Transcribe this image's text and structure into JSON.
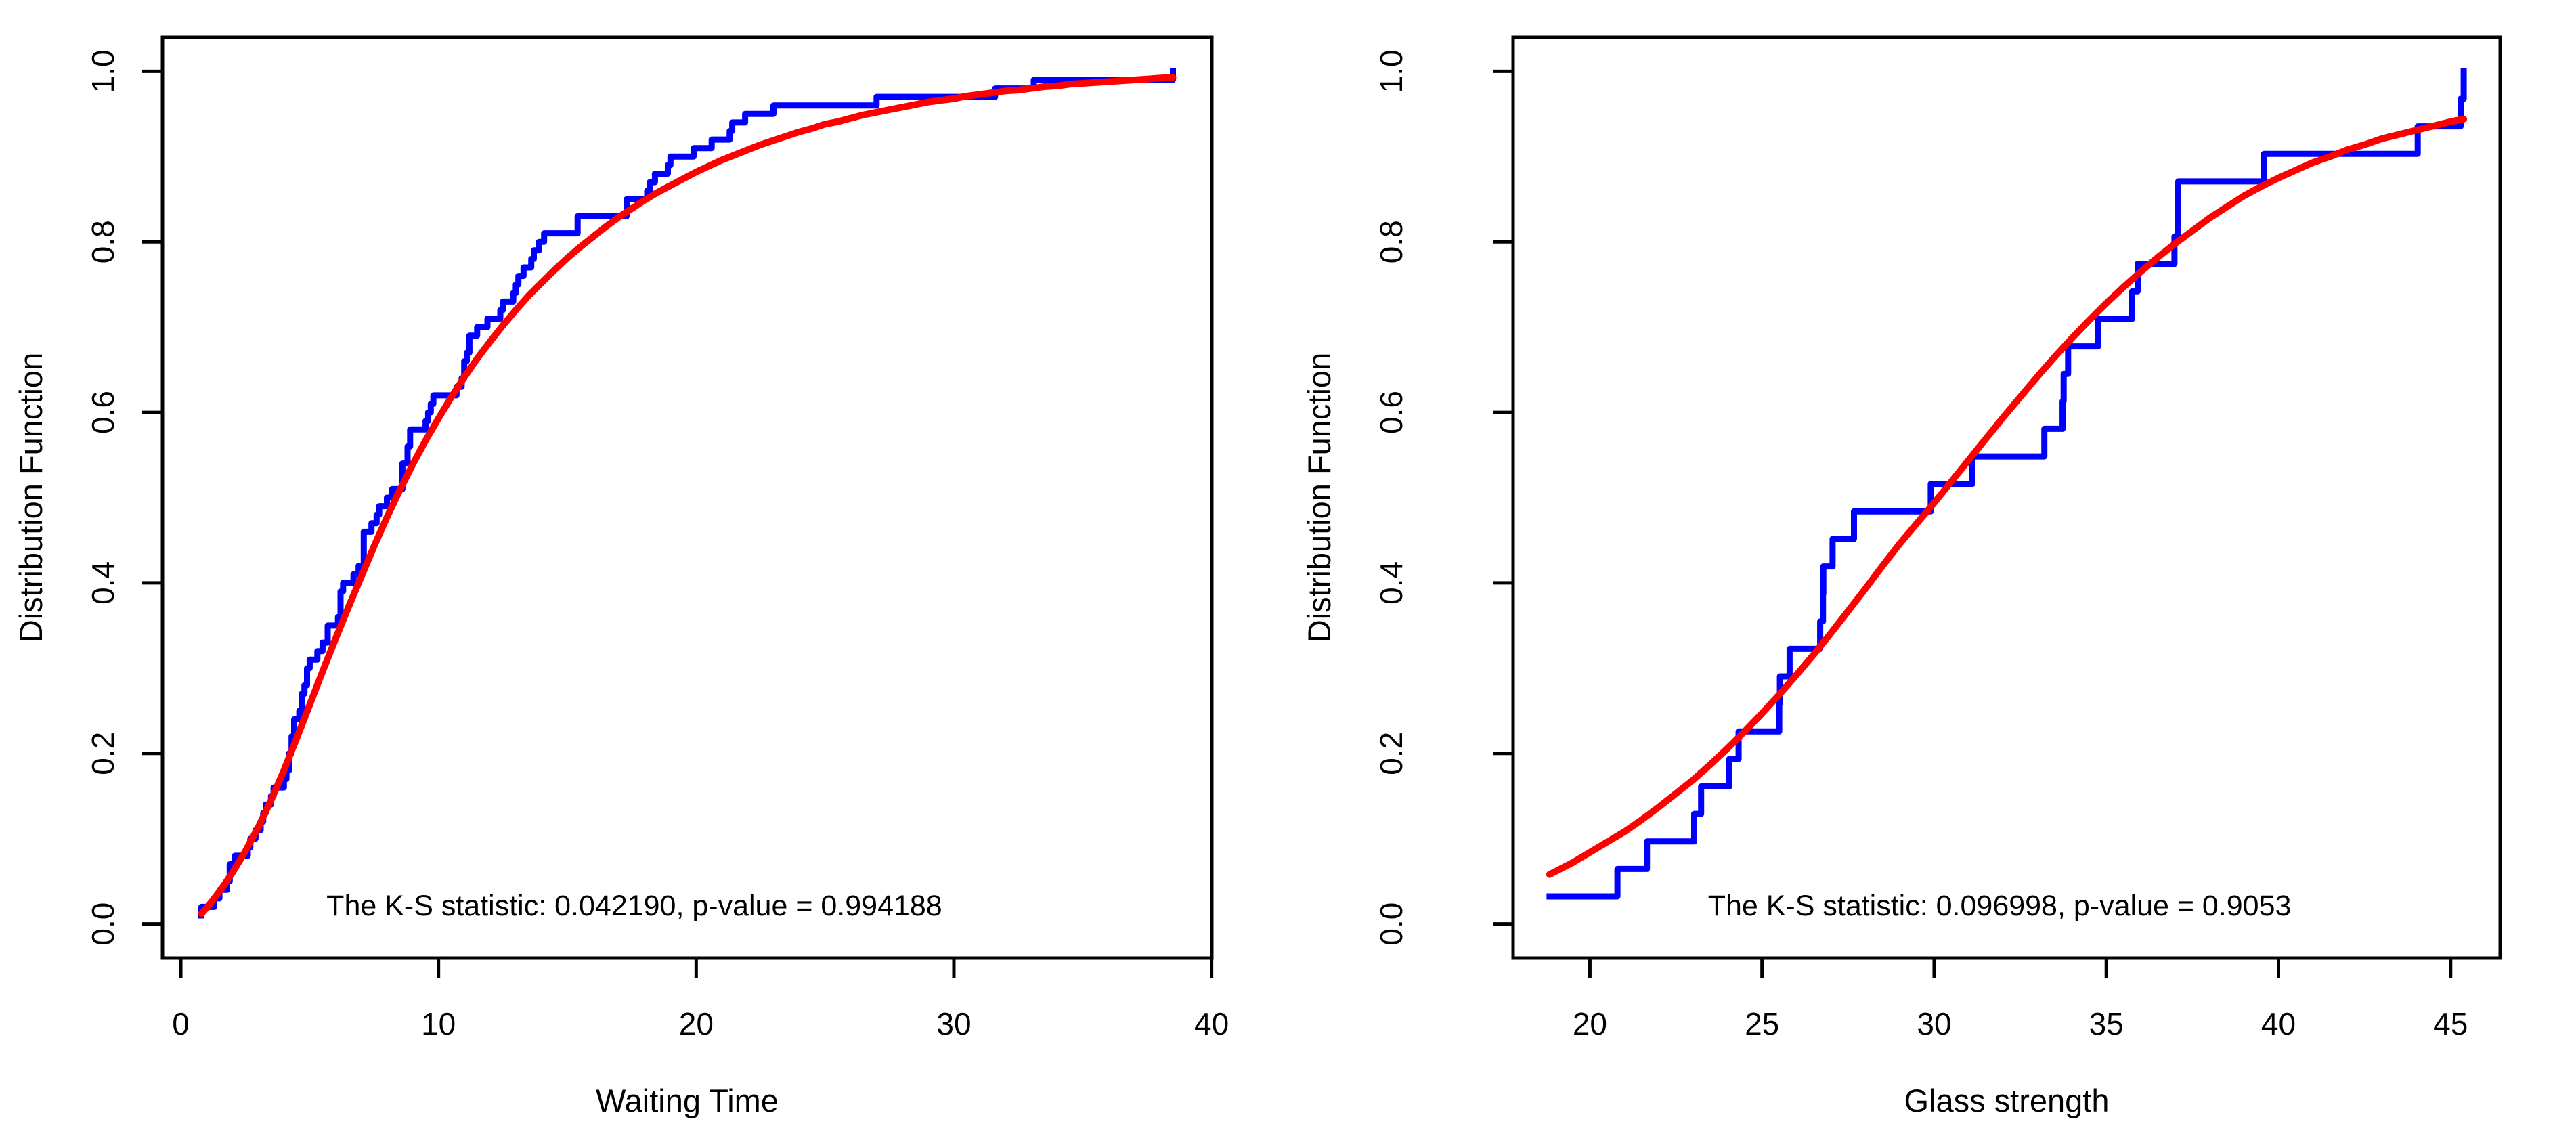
{
  "page": {
    "background": "#ffffff",
    "axis_color": "#000000"
  },
  "chart_data": [
    {
      "type": "line",
      "panel": "left",
      "title": "",
      "xlabel": "Waiting Time",
      "ylabel": "Distribution Function",
      "annotation": "The K-S statistic: 0.042190, p-value = 0.994188",
      "ks_statistic": "0.042190",
      "p_value": "0.994188",
      "annotation_xy": [
        17.6,
        0.022
      ],
      "x_ticks": [
        0,
        10,
        20,
        30,
        40
      ],
      "y_ticks": [
        "0.0",
        "0.2",
        "0.4",
        "0.6",
        "0.8",
        "1.0"
      ],
      "xlim": [
        -0.71,
        40.01
      ],
      "ylim": [
        -0.04,
        1.04
      ],
      "grid": false,
      "legend": "none",
      "series": [
        {
          "name": "empirical-cdf",
          "style": "step",
          "color": "#0000ff",
          "x": [
            0.8,
            0.8,
            1.3,
            1.5,
            1.8,
            1.9,
            1.9,
            2.1,
            2.6,
            2.7,
            2.9,
            3.1,
            3.2,
            3.3,
            3.5,
            3.6,
            4.0,
            4.1,
            4.2,
            4.2,
            4.3,
            4.3,
            4.4,
            4.4,
            4.6,
            4.7,
            4.7,
            4.8,
            4.9,
            4.9,
            5.0,
            5.3,
            5.5,
            5.7,
            5.7,
            6.1,
            6.2,
            6.2,
            6.2,
            6.3,
            6.7,
            6.9,
            7.1,
            7.1,
            7.1,
            7.1,
            7.4,
            7.6,
            7.7,
            8.0,
            8.2,
            8.6,
            8.6,
            8.6,
            8.8,
            8.8,
            8.9,
            8.9,
            9.5,
            9.6,
            9.7,
            9.8,
            10.7,
            10.9,
            11.0,
            11.0,
            11.1,
            11.2,
            11.2,
            11.5,
            11.9,
            12.4,
            12.5,
            12.9,
            13.0,
            13.1,
            13.3,
            13.6,
            13.7,
            13.9,
            14.1,
            15.4,
            15.4,
            17.3,
            17.3,
            18.1,
            18.2,
            18.4,
            18.9,
            19.0,
            19.9,
            20.6,
            21.3,
            21.4,
            21.9,
            23.0,
            27.0,
            31.6,
            33.1,
            38.5
          ]
        },
        {
          "name": "fitted-cdf",
          "style": "smooth",
          "color": "#ff0000",
          "points": [
            [
              0.8,
              0.012
            ],
            [
              1.2,
              0.026
            ],
            [
              1.6,
              0.042
            ],
            [
              2,
              0.06
            ],
            [
              2.5,
              0.085
            ],
            [
              3,
              0.113
            ],
            [
              3.5,
              0.145
            ],
            [
              4,
              0.18
            ],
            [
              4.5,
              0.218
            ],
            [
              5,
              0.257
            ],
            [
              5.5,
              0.296
            ],
            [
              6,
              0.334
            ],
            [
              6.5,
              0.371
            ],
            [
              7,
              0.407
            ],
            [
              7.5,
              0.443
            ],
            [
              8,
              0.477
            ],
            [
              8.5,
              0.509
            ],
            [
              9,
              0.539
            ],
            [
              9.5,
              0.567
            ],
            [
              10,
              0.593
            ],
            [
              10.5,
              0.618
            ],
            [
              11,
              0.641
            ],
            [
              11.5,
              0.663
            ],
            [
              12,
              0.683
            ],
            [
              12.5,
              0.702
            ],
            [
              13,
              0.72
            ],
            [
              13.5,
              0.737
            ],
            [
              14,
              0.752
            ],
            [
              14.5,
              0.767
            ],
            [
              15,
              0.781
            ],
            [
              15.5,
              0.794
            ],
            [
              16,
              0.806
            ],
            [
              16.5,
              0.818
            ],
            [
              17,
              0.829
            ],
            [
              17.5,
              0.839
            ],
            [
              18,
              0.849
            ],
            [
              18.5,
              0.858
            ],
            [
              19,
              0.866
            ],
            [
              19.5,
              0.874
            ],
            [
              20,
              0.882
            ],
            [
              20.5,
              0.889
            ],
            [
              21,
              0.896
            ],
            [
              21.5,
              0.902
            ],
            [
              22,
              0.908
            ],
            [
              22.5,
              0.914
            ],
            [
              23,
              0.919
            ],
            [
              23.5,
              0.924
            ],
            [
              24,
              0.929
            ],
            [
              24.5,
              0.933
            ],
            [
              25,
              0.938
            ],
            [
              25.5,
              0.941
            ],
            [
              26,
              0.945
            ],
            [
              26.5,
              0.949
            ],
            [
              27,
              0.952
            ],
            [
              27.5,
              0.955
            ],
            [
              28,
              0.958
            ],
            [
              28.5,
              0.961
            ],
            [
              29,
              0.964
            ],
            [
              29.5,
              0.966
            ],
            [
              30,
              0.968
            ],
            [
              30.5,
              0.971
            ],
            [
              31,
              0.973
            ],
            [
              31.5,
              0.975
            ],
            [
              32,
              0.977
            ],
            [
              32.5,
              0.978
            ],
            [
              33,
              0.98
            ],
            [
              33.5,
              0.982
            ],
            [
              34,
              0.983
            ],
            [
              34.5,
              0.985
            ],
            [
              35,
              0.986
            ],
            [
              35.5,
              0.987
            ],
            [
              36,
              0.988
            ],
            [
              36.5,
              0.989
            ],
            [
              37,
              0.99
            ],
            [
              37.5,
              0.991
            ],
            [
              38,
              0.992
            ],
            [
              38.5,
              0.993
            ]
          ]
        }
      ]
    },
    {
      "type": "line",
      "panel": "right",
      "title": "",
      "xlabel": "Glass strength",
      "ylabel": "Distribution Function",
      "annotation": "The K-S statistic: 0.096998, p-value = 0.9053",
      "ks_statistic": "0.096998",
      "p_value": "0.9053",
      "annotation_xy": [
        31.9,
        0.022
      ],
      "x_ticks": [
        20,
        25,
        30,
        35,
        40,
        45
      ],
      "y_ticks": [
        "0.0",
        "0.2",
        "0.4",
        "0.6",
        "0.8",
        "1.0"
      ],
      "xlim": [
        17.77,
        46.44
      ],
      "ylim": [
        -0.04,
        1.04
      ],
      "grid": false,
      "legend": "none",
      "series": [
        {
          "name": "empirical-cdf",
          "style": "step",
          "color": "#0000ff",
          "x": [
            18.83,
            20.8,
            21.657,
            23.03,
            23.23,
            24.05,
            24.321,
            25.5,
            25.52,
            25.8,
            26.69,
            26.77,
            26.78,
            27.05,
            27.67,
            29.9,
            31.11,
            33.2,
            33.73,
            33.76,
            33.89,
            34.76,
            35.75,
            35.91,
            36.98,
            37.08,
            37.09,
            39.58,
            44.045,
            45.29,
            45.381
          ]
        },
        {
          "name": "fitted-cdf",
          "style": "smooth",
          "color": "#ff0000",
          "points": [
            [
              18.83,
              0.058
            ],
            [
              19.5,
              0.072
            ],
            [
              20,
              0.084
            ],
            [
              20.5,
              0.096
            ],
            [
              21,
              0.108
            ],
            [
              21.5,
              0.122
            ],
            [
              22,
              0.137
            ],
            [
              22.5,
              0.153
            ],
            [
              23,
              0.169
            ],
            [
              23.5,
              0.187
            ],
            [
              24,
              0.206
            ],
            [
              24.5,
              0.226
            ],
            [
              25,
              0.247
            ],
            [
              25.5,
              0.269
            ],
            [
              26,
              0.292
            ],
            [
              26.5,
              0.316
            ],
            [
              27,
              0.341
            ],
            [
              27.5,
              0.367
            ],
            [
              28,
              0.393
            ],
            [
              28.5,
              0.42
            ],
            [
              29,
              0.446
            ],
            [
              29.5,
              0.47
            ],
            [
              30,
              0.494
            ],
            [
              30.5,
              0.519
            ],
            [
              31,
              0.544
            ],
            [
              31.5,
              0.569
            ],
            [
              32,
              0.594
            ],
            [
              32.5,
              0.618
            ],
            [
              33,
              0.642
            ],
            [
              33.5,
              0.665
            ],
            [
              34,
              0.687
            ],
            [
              34.5,
              0.708
            ],
            [
              35,
              0.728
            ],
            [
              35.5,
              0.747
            ],
            [
              36,
              0.765
            ],
            [
              36.5,
              0.782
            ],
            [
              37,
              0.798
            ],
            [
              37.5,
              0.813
            ],
            [
              38,
              0.828
            ],
            [
              38.5,
              0.841
            ],
            [
              39,
              0.854
            ],
            [
              39.5,
              0.865
            ],
            [
              40,
              0.875
            ],
            [
              40.5,
              0.884
            ],
            [
              41,
              0.893
            ],
            [
              41.5,
              0.9
            ],
            [
              42,
              0.908
            ],
            [
              42.5,
              0.914
            ],
            [
              43,
              0.921
            ],
            [
              43.5,
              0.926
            ],
            [
              44,
              0.931
            ],
            [
              44.5,
              0.936
            ],
            [
              45,
              0.941
            ],
            [
              45.381,
              0.944
            ]
          ]
        }
      ]
    }
  ]
}
